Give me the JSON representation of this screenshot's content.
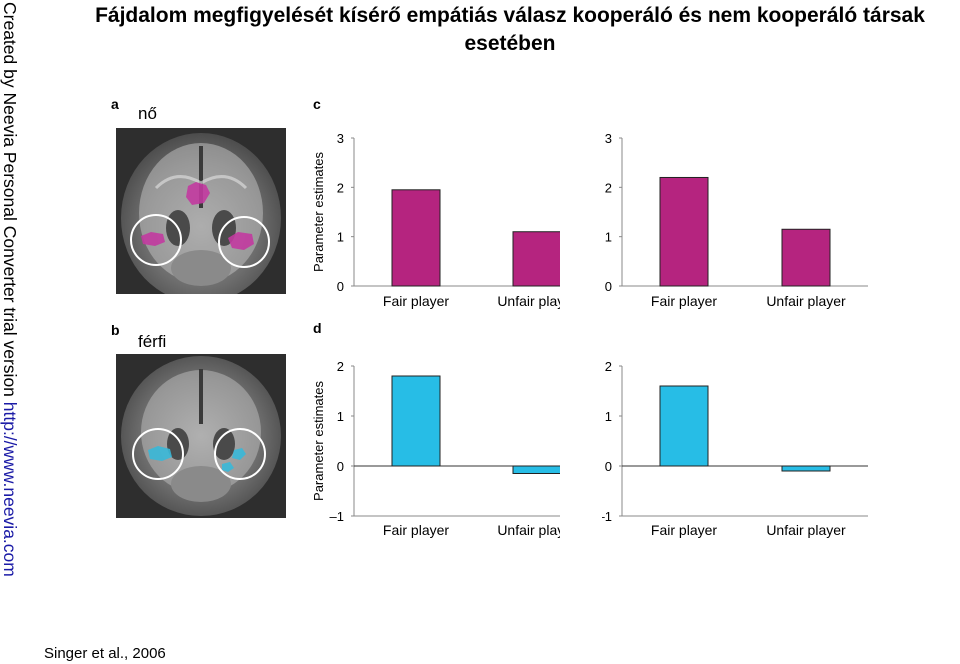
{
  "watermark": {
    "text": "Created by Neevia Personal Converter trial version ",
    "link": "http://www.neevia.com"
  },
  "title": "Fájdalom megfigyelését kísérő empátiás válasz kooperáló és nem kooperáló társak esetében",
  "panels": {
    "a": {
      "letter": "a",
      "label": "nő",
      "highlight_color": "#c23aa0"
    },
    "b": {
      "letter": "b",
      "label": "férfi",
      "highlight_color": "#38b8d8"
    },
    "c": {
      "letter": "c"
    },
    "d": {
      "letter": "d"
    }
  },
  "citation": "Singer et al., 2006",
  "chart_data": [
    {
      "type": "bar",
      "panel": "c",
      "categories": [
        "Fair player",
        "Unfair player"
      ],
      "values": [
        1.95,
        1.1
      ],
      "ylabel": "Parameter estimates",
      "ylim": [
        0,
        3
      ],
      "yticks": [
        "3",
        "2",
        "1",
        "0"
      ],
      "color": "#b5247f"
    },
    {
      "type": "bar",
      "panel": "c",
      "categories": [
        "Fair player",
        "Unfair player"
      ],
      "values": [
        2.2,
        1.15
      ],
      "ylabel": "",
      "ylim": [
        0,
        3
      ],
      "yticks": [
        "3",
        "2",
        "1",
        "0"
      ],
      "color": "#b5247f"
    },
    {
      "type": "bar",
      "panel": "d",
      "categories": [
        "Fair player",
        "Unfair player"
      ],
      "values": [
        1.8,
        -0.15
      ],
      "ylabel": "Parameter estimates",
      "ylim": [
        -1,
        2
      ],
      "yticks": [
        "2",
        "1",
        "0",
        "–1"
      ],
      "color": "#27bde6"
    },
    {
      "type": "bar",
      "panel": "d",
      "categories": [
        "Fair player",
        "Unfair player"
      ],
      "values": [
        1.6,
        -0.1
      ],
      "ylabel": "",
      "ylim": [
        -1,
        2
      ],
      "yticks": [
        "2",
        "1",
        "0",
        "–1"
      ],
      "color": "#27bde6"
    }
  ]
}
